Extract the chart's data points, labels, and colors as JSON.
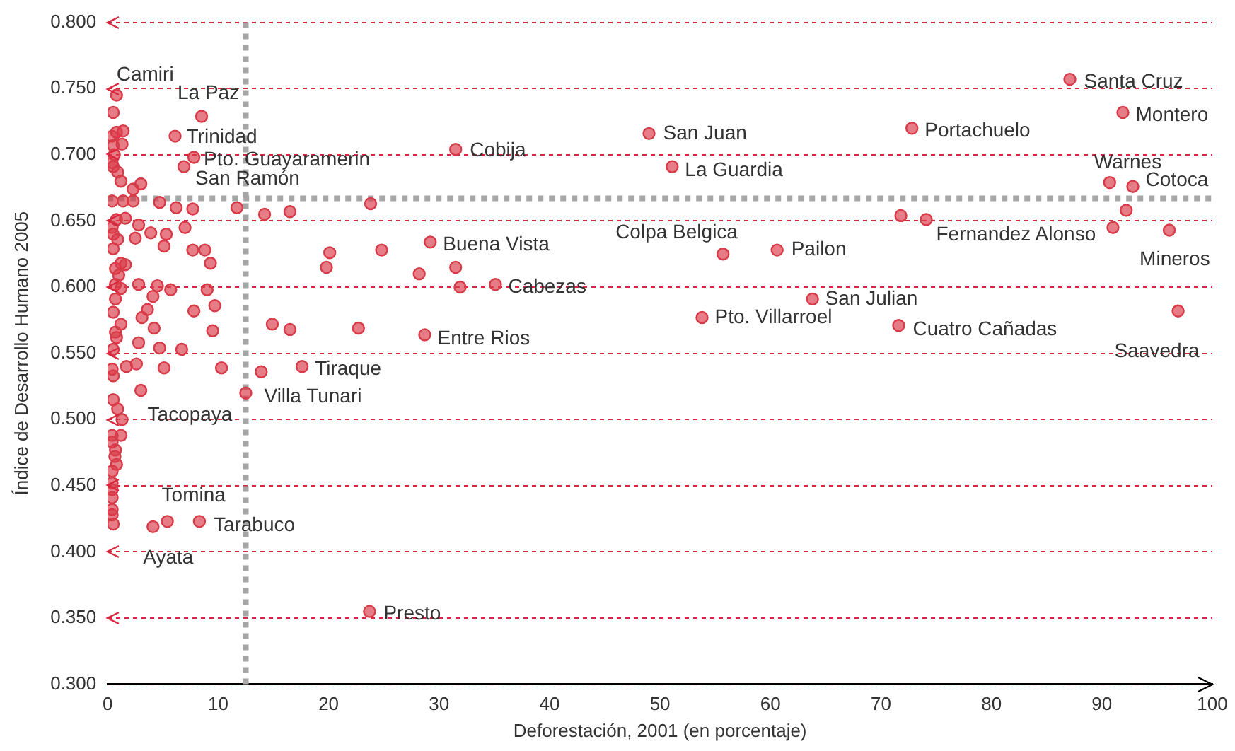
{
  "chart_data": {
    "type": "scatter",
    "xlabel": "Deforestación, 2001 (en porcentaje)",
    "ylabel": "Índice de Desarrollo Humano 2005",
    "xlim": [
      0,
      100
    ],
    "ylim": [
      0.3,
      0.8
    ],
    "xticks": [
      0,
      10,
      20,
      30,
      40,
      50,
      60,
      70,
      80,
      90,
      100
    ],
    "yticks": [
      {
        "value": 0.3,
        "label": "0.300"
      },
      {
        "value": 0.35,
        "label": "0.350"
      },
      {
        "value": 0.4,
        "label": "0.400"
      },
      {
        "value": 0.45,
        "label": "0.450"
      },
      {
        "value": 0.5,
        "label": "0.500"
      },
      {
        "value": 0.55,
        "label": "0.550"
      },
      {
        "value": 0.6,
        "label": "0.600"
      },
      {
        "value": 0.65,
        "label": "0.650"
      },
      {
        "value": 0.7,
        "label": "0.700"
      },
      {
        "value": 0.75,
        "label": "0.750"
      },
      {
        "value": 0.8,
        "label": "0.800"
      }
    ],
    "grid": "y",
    "legend": false,
    "marker": "circle",
    "ref_lines": [
      {
        "axis": "x",
        "value": 12.5,
        "color": "#a6a6a6",
        "line_style": "dotted"
      },
      {
        "axis": "y",
        "value": 0.667,
        "color": "#a6a6a6",
        "line_style": "dotted"
      }
    ],
    "series": [
      {
        "color": "#d93a48",
        "x": [
          0.8,
          8.5,
          6.1,
          7.8,
          6.9,
          3.0,
          31.5,
          49.0,
          51.1,
          87.1,
          91.9,
          72.8,
          90.7,
          92.8,
          92.2,
          91.0,
          71.8,
          74.1,
          96.1,
          55.7,
          60.6,
          63.8,
          53.8,
          71.6,
          96.9,
          29.2,
          35.1,
          31.9,
          31.5,
          28.2,
          28.7,
          17.6,
          12.5,
          1.3,
          5.4,
          4.1,
          8.3,
          23.7,
          4.7,
          6.2,
          7.7,
          11.7,
          14.2,
          16.5,
          23.8,
          2.8,
          3.9,
          5.3,
          7.0,
          2.5,
          5.1,
          7.7,
          8.8,
          9.3,
          20.1,
          19.8,
          24.8,
          2.8,
          4.5,
          5.7,
          9.0,
          4.1,
          9.7,
          3.6,
          3.1,
          7.8,
          4.2,
          9.5,
          14.9,
          16.5,
          22.7,
          2.8,
          4.7,
          6.7,
          1.7,
          2.6,
          5.1,
          10.3,
          13.9,
          3.0,
          0.5,
          0.8,
          1.4,
          0.4,
          1.3,
          0.5,
          0.6,
          0.4,
          0.5,
          0.9,
          1.2,
          2.3,
          0.4,
          1.4,
          2.3,
          0.8,
          1.6,
          0.4,
          0.5,
          0.9,
          0.5,
          1.2,
          1.6,
          0.7,
          1.0,
          0.7,
          1.2,
          0.7,
          0.5,
          1.2,
          0.7,
          0.8,
          0.5,
          0.4,
          0.5,
          0.5,
          0.9,
          0.4,
          1.2,
          0.4,
          0.7,
          0.65,
          0.8,
          0.4,
          0.4,
          0.4,
          0.4,
          0.4,
          0.4,
          0.5
        ],
        "values": [
          0.745,
          0.729,
          0.714,
          0.698,
          0.691,
          0.678,
          0.704,
          0.716,
          0.691,
          0.757,
          0.732,
          0.72,
          0.679,
          0.676,
          0.658,
          0.645,
          0.654,
          0.651,
          0.643,
          0.625,
          0.628,
          0.591,
          0.577,
          0.571,
          0.582,
          0.634,
          0.602,
          0.6,
          0.615,
          0.61,
          0.564,
          0.54,
          0.52,
          0.5,
          0.423,
          0.419,
          0.423,
          0.355,
          0.664,
          0.66,
          0.659,
          0.66,
          0.655,
          0.657,
          0.663,
          0.647,
          0.641,
          0.64,
          0.645,
          0.637,
          0.631,
          0.628,
          0.628,
          0.618,
          0.626,
          0.615,
          0.628,
          0.602,
          0.601,
          0.598,
          0.598,
          0.593,
          0.586,
          0.583,
          0.577,
          0.582,
          0.569,
          0.567,
          0.572,
          0.568,
          0.569,
          0.558,
          0.554,
          0.553,
          0.54,
          0.542,
          0.539,
          0.539,
          0.536,
          0.522,
          0.732,
          0.717,
          0.718,
          0.714,
          0.708,
          0.707,
          0.7,
          0.694,
          0.691,
          0.687,
          0.68,
          0.674,
          0.665,
          0.665,
          0.665,
          0.651,
          0.652,
          0.645,
          0.64,
          0.636,
          0.629,
          0.618,
          0.617,
          0.614,
          0.609,
          0.602,
          0.599,
          0.591,
          0.581,
          0.572,
          0.566,
          0.562,
          0.553,
          0.538,
          0.533,
          0.515,
          0.508,
          0.488,
          0.488,
          0.483,
          0.477,
          0.472,
          0.466,
          0.461,
          0.452,
          0.447,
          0.441,
          0.432,
          0.428,
          0.421
        ]
      }
    ],
    "annotations": [
      {
        "text": "Camiri",
        "x": 0.8,
        "y": 0.745
      },
      {
        "text": "La Paz",
        "x": 8.5,
        "y": 0.729
      },
      {
        "text": "Trinidad",
        "x": 6.1,
        "y": 0.714
      },
      {
        "text": "Pto. Guayaramerin",
        "x": 7.8,
        "y": 0.698
      },
      {
        "text": "San Ramón",
        "x": 6.9,
        "y": 0.691
      },
      {
        "text": "Cobija",
        "x": 31.5,
        "y": 0.704
      },
      {
        "text": "San Juan",
        "x": 49.0,
        "y": 0.716
      },
      {
        "text": "La Guardia",
        "x": 51.1,
        "y": 0.691
      },
      {
        "text": "Santa Cruz",
        "x": 87.1,
        "y": 0.757
      },
      {
        "text": "Montero",
        "x": 91.9,
        "y": 0.732
      },
      {
        "text": "Portachuelo",
        "x": 72.8,
        "y": 0.72
      },
      {
        "text": "Warnes",
        "x": 90.7,
        "y": 0.679
      },
      {
        "text": "Cotoca",
        "x": 92.8,
        "y": 0.676
      },
      {
        "text": "Fernandez Alonso",
        "x": 74.1,
        "y": 0.651
      },
      {
        "text": "Mineros",
        "x": 96.1,
        "y": 0.643
      },
      {
        "text": "Colpa Belgica",
        "x": 55.7,
        "y": 0.625
      },
      {
        "text": "Pailon",
        "x": 60.6,
        "y": 0.628
      },
      {
        "text": "San Julian",
        "x": 63.8,
        "y": 0.591
      },
      {
        "text": "Pto. Villarroel",
        "x": 53.8,
        "y": 0.577
      },
      {
        "text": "Cuatro Cañadas",
        "x": 71.6,
        "y": 0.571
      },
      {
        "text": "Saavedra",
        "x": 96.9,
        "y": 0.582
      },
      {
        "text": "Buena Vista",
        "x": 29.2,
        "y": 0.634
      },
      {
        "text": "Cabezas",
        "x": 35.1,
        "y": 0.602
      },
      {
        "text": "Entre Rios",
        "x": 28.7,
        "y": 0.564
      },
      {
        "text": "Tiraque",
        "x": 17.6,
        "y": 0.54
      },
      {
        "text": "Villa Tunari",
        "x": 12.5,
        "y": 0.52
      },
      {
        "text": "Tacopaya",
        "x": 1.3,
        "y": 0.5
      },
      {
        "text": "Tomina",
        "x": 5.4,
        "y": 0.423
      },
      {
        "text": "Tarabuco",
        "x": 8.3,
        "y": 0.423
      },
      {
        "text": "Ayata",
        "x": 4.1,
        "y": 0.419
      },
      {
        "text": "Presto",
        "x": 23.7,
        "y": 0.355
      }
    ]
  }
}
